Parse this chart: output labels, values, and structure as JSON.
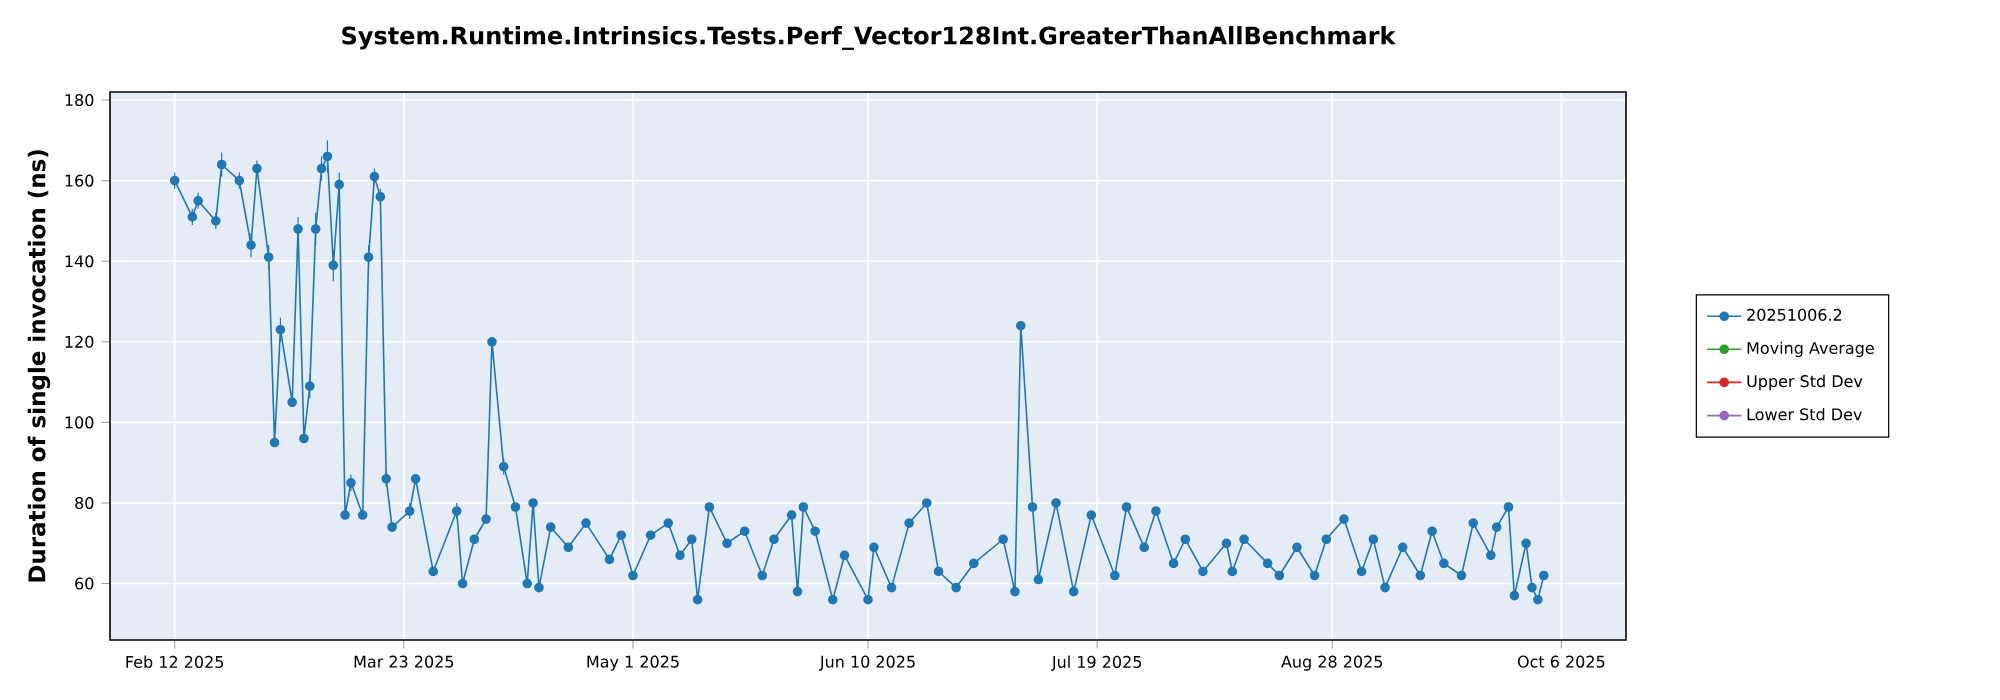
{
  "chart_data": {
    "type": "line",
    "title": "System.Runtime.Intrinsics.Tests.Perf_Vector128Int.GreaterThanAllBenchmark",
    "ylabel": "Duration of single invocation (ns)",
    "xlim": [
      "2025-02-01",
      "2025-10-17"
    ],
    "xticks": [
      {
        "value": "2025-02-12",
        "label": "Feb 12 2025"
      },
      {
        "value": "2025-03-23",
        "label": "Mar 23 2025"
      },
      {
        "value": "2025-05-01",
        "label": "May 1 2025"
      },
      {
        "value": "2025-06-10",
        "label": "Jun 10 2025"
      },
      {
        "value": "2025-07-19",
        "label": "Jul 19 2025"
      },
      {
        "value": "2025-08-28",
        "label": "Aug 28 2025"
      },
      {
        "value": "2025-10-06",
        "label": "Oct 6 2025"
      }
    ],
    "ylim": [
      46,
      182
    ],
    "yticks": [
      60,
      80,
      100,
      120,
      140,
      160,
      180
    ],
    "grid": true,
    "legend": "right",
    "marker": "circle",
    "series": [
      {
        "name": "20251006.2",
        "color": "#1f77b4",
        "x": [
          "2025-02-12",
          "2025-02-15",
          "2025-02-16",
          "2025-02-19",
          "2025-02-20",
          "2025-02-23",
          "2025-02-25",
          "2025-02-26",
          "2025-02-28",
          "2025-03-01",
          "2025-03-02",
          "2025-03-04",
          "2025-03-05",
          "2025-03-06",
          "2025-03-07",
          "2025-03-08",
          "2025-03-09",
          "2025-03-10",
          "2025-03-11",
          "2025-03-12",
          "2025-03-13",
          "2025-03-14",
          "2025-03-16",
          "2025-03-17",
          "2025-03-18",
          "2025-03-19",
          "2025-03-20",
          "2025-03-21",
          "2025-03-24",
          "2025-03-25",
          "2025-03-28",
          "2025-04-01",
          "2025-04-02",
          "2025-04-04",
          "2025-04-06",
          "2025-04-07",
          "2025-04-09",
          "2025-04-11",
          "2025-04-13",
          "2025-04-14",
          "2025-04-15",
          "2025-04-17",
          "2025-04-20",
          "2025-04-23",
          "2025-04-27",
          "2025-04-29",
          "2025-05-01",
          "2025-05-04",
          "2025-05-07",
          "2025-05-09",
          "2025-05-11",
          "2025-05-12",
          "2025-05-14",
          "2025-05-17",
          "2025-05-20",
          "2025-05-23",
          "2025-05-25",
          "2025-05-28",
          "2025-05-29",
          "2025-05-30",
          "2025-06-01",
          "2025-06-04",
          "2025-06-06",
          "2025-06-10",
          "2025-06-11",
          "2025-06-14",
          "2025-06-17",
          "2025-06-20",
          "2025-06-22",
          "2025-06-25",
          "2025-06-28",
          "2025-07-03",
          "2025-07-05",
          "2025-07-06",
          "2025-07-08",
          "2025-07-09",
          "2025-07-12",
          "2025-07-15",
          "2025-07-18",
          "2025-07-22",
          "2025-07-24",
          "2025-07-27",
          "2025-07-29",
          "2025-08-01",
          "2025-08-03",
          "2025-08-06",
          "2025-08-10",
          "2025-08-11",
          "2025-08-13",
          "2025-08-17",
          "2025-08-19",
          "2025-08-22",
          "2025-08-25",
          "2025-08-27",
          "2025-08-30",
          "2025-09-02",
          "2025-09-04",
          "2025-09-06",
          "2025-09-09",
          "2025-09-12",
          "2025-09-14",
          "2025-09-16",
          "2025-09-19",
          "2025-09-21",
          "2025-09-24",
          "2025-09-25",
          "2025-09-27",
          "2025-09-28",
          "2025-09-30",
          "2025-10-01",
          "2025-10-02",
          "2025-10-03"
        ],
        "values": [
          160,
          151,
          155,
          150,
          164,
          160,
          144,
          163,
          141,
          95,
          123,
          105,
          148,
          96,
          109,
          148,
          163,
          166,
          139,
          159,
          77,
          85,
          77,
          141,
          161,
          156,
          86,
          74,
          78,
          86,
          63,
          78,
          60,
          71,
          76,
          120,
          89,
          79,
          60,
          80,
          59,
          74,
          69,
          75,
          66,
          72,
          62,
          72,
          75,
          67,
          71,
          56,
          79,
          70,
          73,
          62,
          71,
          77,
          58,
          79,
          73,
          56,
          67,
          56,
          69,
          59,
          75,
          80,
          63,
          59,
          65,
          71,
          58,
          124,
          79,
          61,
          80,
          58,
          77,
          62,
          79,
          69,
          78,
          65,
          71,
          63,
          70,
          63,
          71,
          65,
          62,
          69,
          62,
          71,
          76,
          63,
          71,
          59,
          69,
          62,
          73,
          65,
          62,
          75,
          67,
          74,
          79,
          57,
          70,
          59,
          56,
          62
        ],
        "errors": [
          2,
          2,
          2,
          2,
          3,
          2,
          3,
          2,
          3,
          1,
          3,
          1,
          3,
          1,
          3,
          4,
          3,
          4,
          4,
          3,
          1,
          2,
          1,
          3,
          2,
          2,
          2,
          1,
          2,
          1,
          1,
          2,
          1,
          1,
          1,
          1,
          2,
          1,
          1,
          1,
          1,
          1,
          1,
          1,
          1,
          1,
          1,
          1,
          1,
          1,
          1,
          1,
          1,
          1,
          1,
          1,
          1,
          1,
          1,
          1,
          1,
          1,
          1,
          1,
          1,
          1,
          1,
          1,
          1,
          1,
          1,
          1,
          1,
          1,
          1,
          1,
          1,
          1,
          1,
          1,
          1,
          1,
          1,
          1,
          1,
          1,
          1,
          1,
          1,
          1,
          1,
          1,
          1,
          1,
          1,
          1,
          1,
          1,
          1,
          1,
          1,
          1,
          1,
          1,
          1,
          1,
          1,
          1,
          1,
          1,
          1,
          1
        ]
      },
      {
        "name": "Moving Average",
        "color": "#2ca02c"
      },
      {
        "name": "Upper Std Dev",
        "color": "#d62728"
      },
      {
        "name": "Lower Std Dev",
        "color": "#9467bd"
      }
    ]
  }
}
